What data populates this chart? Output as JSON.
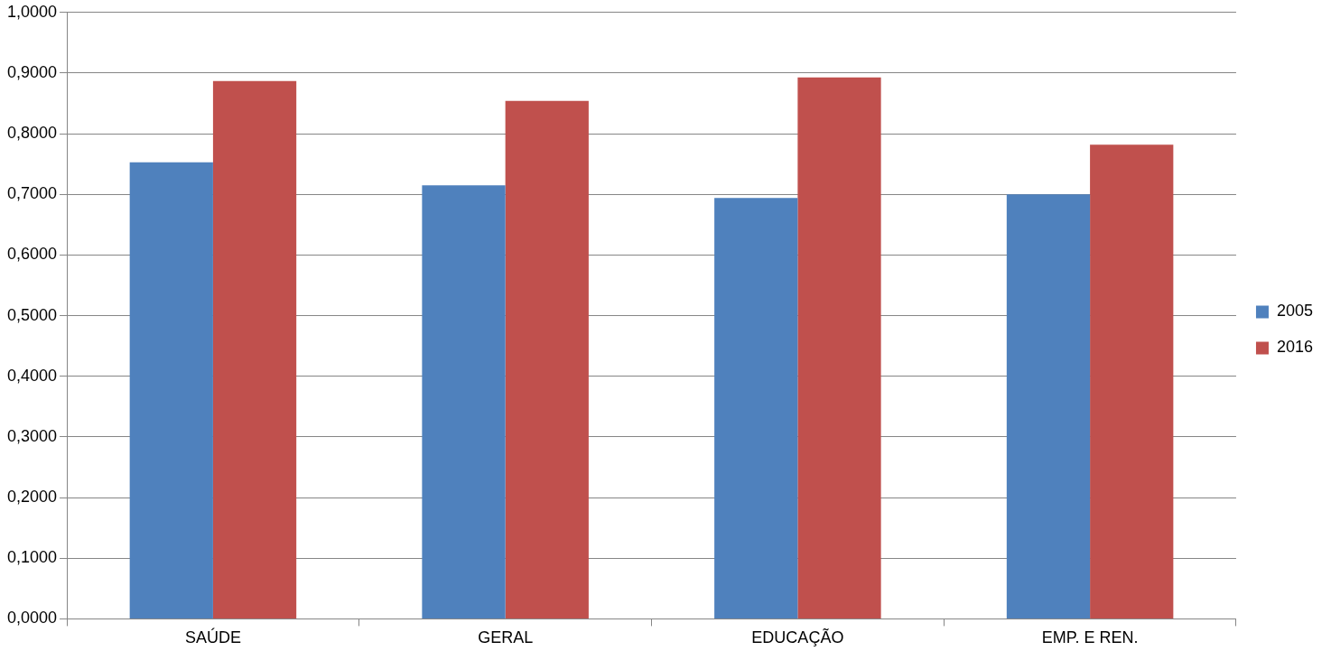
{
  "chart_data": {
    "type": "bar",
    "categories": [
      "SAÚDE",
      "GERAL",
      "EDUCAÇÃO",
      "EMP. E REN."
    ],
    "series": [
      {
        "name": "2005",
        "color": "#4f81bd",
        "values": [
          0.753,
          0.715,
          0.694,
          0.7
        ]
      },
      {
        "name": "2016",
        "color": "#c0504d",
        "values": [
          0.887,
          0.854,
          0.893,
          0.782
        ]
      }
    ],
    "ylim": [
      0,
      1
    ],
    "yticks": [
      {
        "value": 0,
        "label": "0,0000"
      },
      {
        "value": 0.1,
        "label": "0,1000"
      },
      {
        "value": 0.2,
        "label": "0,2000"
      },
      {
        "value": 0.3,
        "label": "0,3000"
      },
      {
        "value": 0.4,
        "label": "0,4000"
      },
      {
        "value": 0.5,
        "label": "0,5000"
      },
      {
        "value": 0.6,
        "label": "0,6000"
      },
      {
        "value": 0.7,
        "label": "0,7000"
      },
      {
        "value": 0.8,
        "label": "0,8000"
      },
      {
        "value": 0.9,
        "label": "0,9000"
      },
      {
        "value": 1,
        "label": "1,0000"
      }
    ],
    "grid": "y",
    "legend": "right"
  }
}
